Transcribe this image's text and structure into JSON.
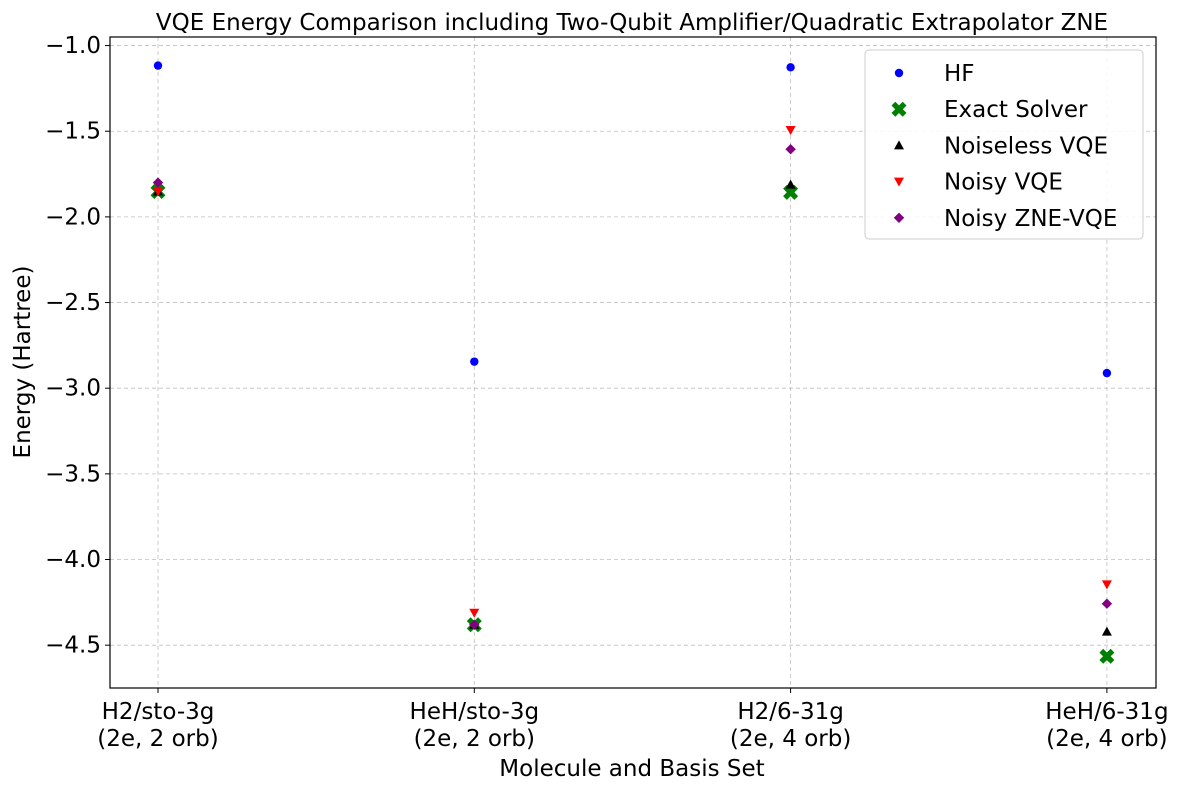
{
  "chart_data": {
    "type": "scatter",
    "title": "VQE Energy Comparison including Two-Qubit Amplifier/Quadratic Extrapolator ZNE",
    "xlabel": "Molecule and Basis Set",
    "ylabel": "Energy (Hartree)",
    "categories": [
      [
        "H2/sto-3g",
        "(2e, 2 orb)"
      ],
      [
        "HeH/sto-3g",
        "(2e, 2 orb)"
      ],
      [
        "H2/6-31g",
        "(2e, 4 orb)"
      ],
      [
        "HeH/6-31g",
        "(2e, 4 orb)"
      ]
    ],
    "ylim": [
      -4.75,
      -0.95
    ],
    "yticks": [
      -1.0,
      -1.5,
      -2.0,
      -2.5,
      -3.0,
      -3.5,
      -4.0,
      -4.5
    ],
    "ytick_labels": [
      "−1.0",
      "−1.5",
      "−2.0",
      "−2.5",
      "−3.0",
      "−3.5",
      "−4.0",
      "−4.5"
    ],
    "grid": true,
    "legend_position": "top-right",
    "series": [
      {
        "name": "HF",
        "marker": "circle",
        "color": "#0000ff",
        "values": [
          -1.117,
          -2.845,
          -1.127,
          -2.912
        ]
      },
      {
        "name": "Exact Solver",
        "marker": "x-thick",
        "color": "#008000",
        "values": [
          -1.852,
          -4.381,
          -1.857,
          -4.565
        ]
      },
      {
        "name": "Noiseless VQE",
        "marker": "triangle-up",
        "color": "#000000",
        "values": [
          -1.852,
          -4.381,
          -1.812,
          -4.421
        ]
      },
      {
        "name": "Noisy VQE",
        "marker": "triangle-down",
        "color": "#ff0000",
        "values": [
          -1.852,
          -4.311,
          -1.493,
          -4.145
        ]
      },
      {
        "name": "Noisy ZNE-VQE",
        "marker": "diamond",
        "color": "#800080",
        "values": [
          -1.8,
          -4.381,
          -1.605,
          -4.258
        ]
      }
    ]
  }
}
